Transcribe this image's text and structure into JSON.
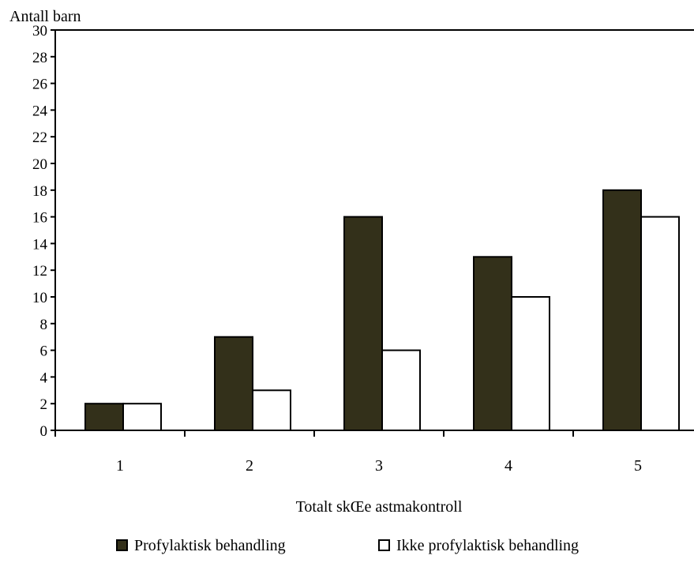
{
  "chart_data": {
    "type": "bar",
    "title": "",
    "ylabel": "Antall barn",
    "xlabel": "Totalt skŒe astmakontroll",
    "categories": [
      "1",
      "2",
      "3",
      "4",
      "5"
    ],
    "ylim": [
      0,
      30
    ],
    "yticks": [
      0,
      2,
      4,
      6,
      8,
      10,
      12,
      14,
      16,
      18,
      20,
      22,
      24,
      26,
      28,
      30
    ],
    "grid": false,
    "legend_position": "bottom",
    "series": [
      {
        "name": "Profylaktisk behandling",
        "values": [
          2,
          7,
          16,
          13,
          18
        ],
        "color": "#33301a"
      },
      {
        "name": "Ikke profylaktisk behandling",
        "values": [
          2,
          3,
          6,
          10,
          16
        ],
        "color": "#ffffff"
      }
    ]
  }
}
